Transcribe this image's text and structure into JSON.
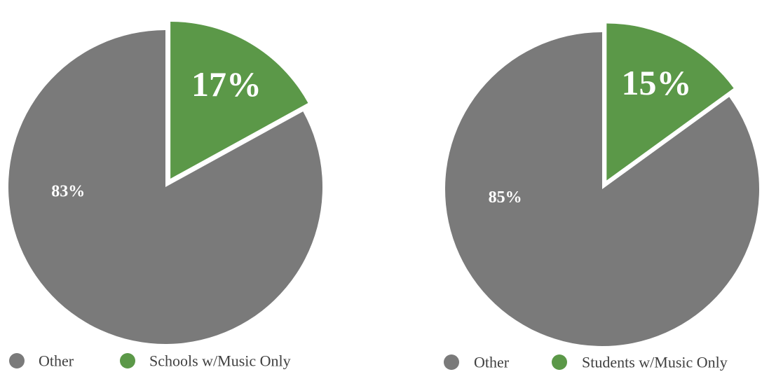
{
  "colors": {
    "other": "#7a7a7a",
    "highlight": "#5b9848",
    "label": "#ffffff",
    "legend_text": "#404040",
    "background": "#ffffff"
  },
  "chart_data": [
    {
      "type": "pie",
      "title": "",
      "slices": [
        {
          "name": "Other",
          "value": 83,
          "label": "83%",
          "color": "#7a7a7a",
          "exploded": false
        },
        {
          "name": "Schools w/Music Only",
          "value": 17,
          "label": "17%",
          "color": "#5b9848",
          "exploded": true
        }
      ],
      "legend": {
        "placement": "bottom",
        "entries": [
          "Other",
          "Schools w/Music Only"
        ]
      }
    },
    {
      "type": "pie",
      "title": "",
      "slices": [
        {
          "name": "Other",
          "value": 85,
          "label": "85%",
          "color": "#7a7a7a",
          "exploded": false
        },
        {
          "name": "Students w/Music Only",
          "value": 15,
          "label": "15%",
          "color": "#5b9848",
          "exploded": true
        }
      ],
      "legend": {
        "placement": "bottom",
        "entries": [
          "Other",
          "Students w/Music Only"
        ]
      }
    }
  ]
}
